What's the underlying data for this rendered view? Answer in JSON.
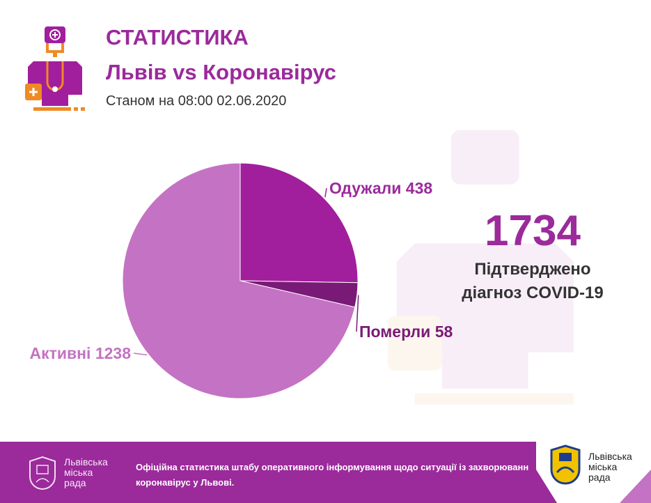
{
  "header": {
    "title": "СТАТИСТИКА",
    "subtitle": "Львів vs Коронавірус",
    "date": "Станом на 08:00 02.06.2020"
  },
  "chart_data": {
    "type": "pie",
    "labels": [
      "Одужали",
      "Померли",
      "Активні"
    ],
    "values": [
      438,
      58,
      1238
    ],
    "colors": [
      "#a11f9c",
      "#7a1a77",
      "#c472c3"
    ],
    "label_colors": [
      "#9b2a9b",
      "#7a1a77",
      "#c472c3"
    ]
  },
  "summary": {
    "total": "1734",
    "caption_line1": "Підтверджено",
    "caption_line2": "діагноз COVID-19"
  },
  "footer": {
    "city_line1": "Львівська",
    "city_line2": "міська",
    "city_line3": "рада",
    "text_line1": "Офіційна статистика штабу оперативного інформування щодо ситуації із захворюванн",
    "text_line2": "коронавірус у Львові."
  },
  "colors": {
    "accent": "#9b2a9b",
    "orange": "#f08a24"
  }
}
